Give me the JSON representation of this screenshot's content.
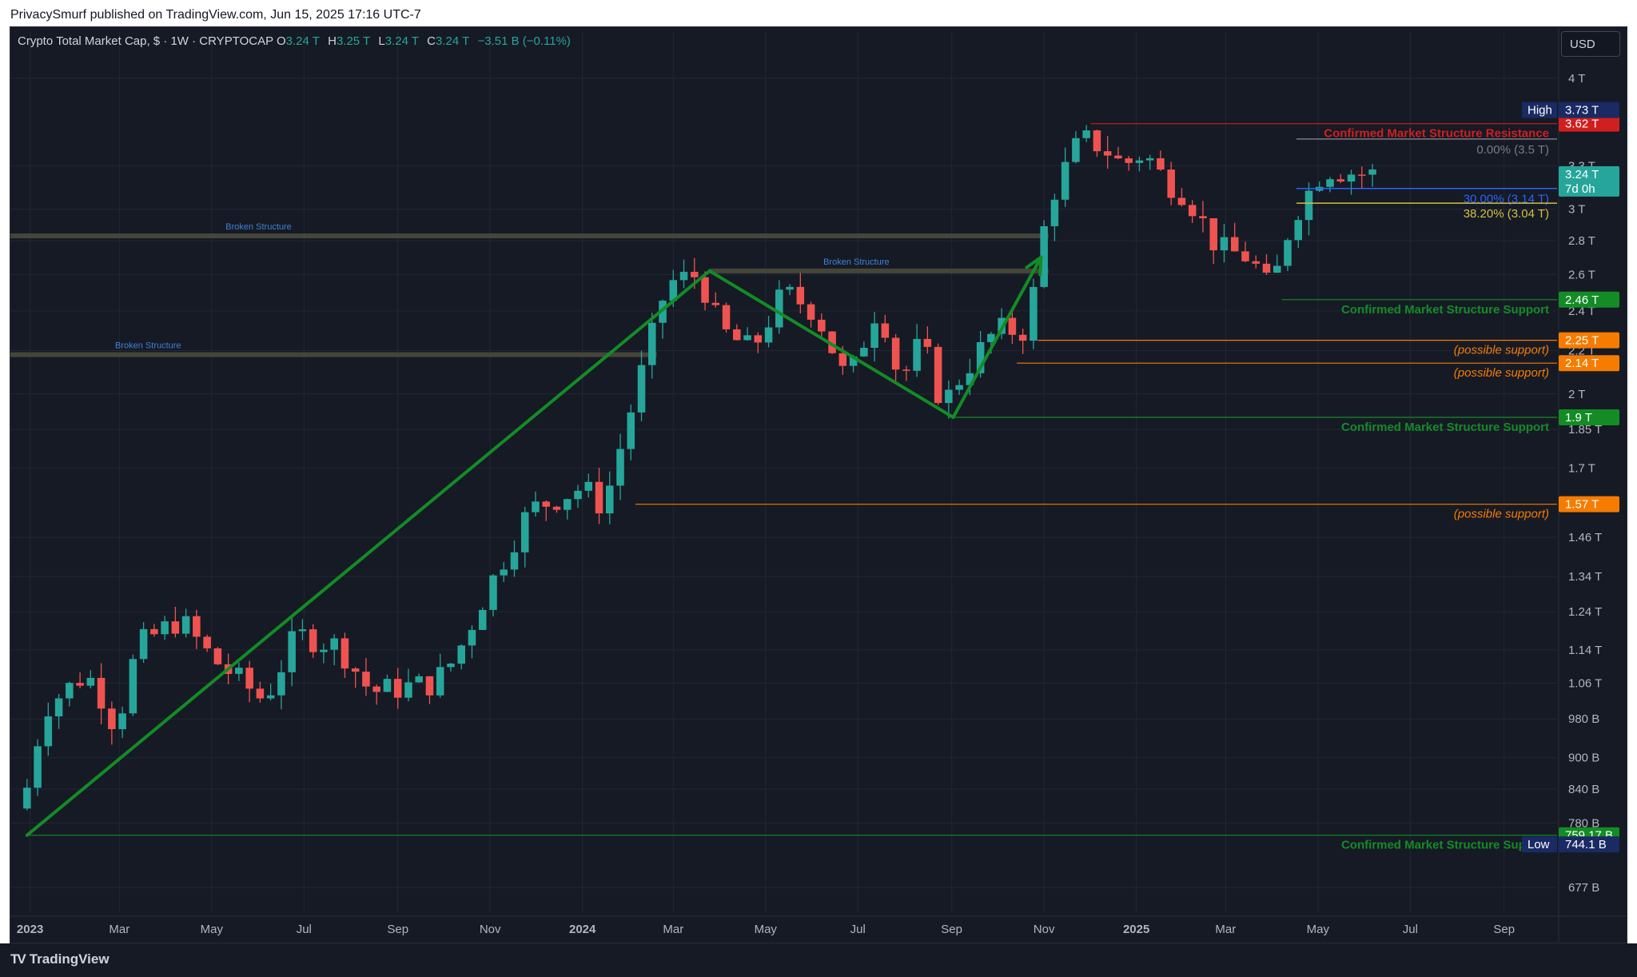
{
  "header": {
    "published": "PrivacySmurf published on TradingView.com, Jun 15, 2025 17:16 UTC-7",
    "symbol": "Crypto Total Market Cap, $ · 1W · CRYPTOCAP",
    "o_label": "O",
    "o_value": "3.24 T",
    "h_label": "H",
    "h_value": "3.25 T",
    "l_label": "L",
    "l_value": "3.24 T",
    "c_label": "C",
    "c_value": "3.24 T",
    "change": "−3.51 B (−0.11%)",
    "currency": "USD"
  },
  "footer": {
    "brand": "TradingView"
  },
  "colors": {
    "background": "#161a25",
    "up": "#26a69a",
    "down": "#ef5350",
    "structure": "#138c25",
    "resistance": "#d11f1f",
    "possible": "#f57c00",
    "grid": "#232736"
  },
  "chart_data": {
    "type": "candlestick",
    "title": "Crypto Total Market Cap, $ · 1W · CRYPTOCAP",
    "yscale": "log",
    "ylim": [
      640000000000,
      4200000000000
    ],
    "xlim": [
      "2022-12-19",
      "2025-10-06"
    ],
    "y_ticks": [
      {
        "v": 4000000000000.0,
        "label": "4 T"
      },
      {
        "v": 3300000000000.0,
        "label": "3.3 T"
      },
      {
        "v": 3000000000000.0,
        "label": "3 T"
      },
      {
        "v": 2800000000000.0,
        "label": "2.8 T"
      },
      {
        "v": 2600000000000.0,
        "label": "2.6 T"
      },
      {
        "v": 2400000000000.0,
        "label": "2.4 T"
      },
      {
        "v": 2200000000000.0,
        "label": "2.2 T"
      },
      {
        "v": 2000000000000.0,
        "label": "2 T"
      },
      {
        "v": 1850000000000.0,
        "label": "1.85 T"
      },
      {
        "v": 1700000000000.0,
        "label": "1.7 T"
      },
      {
        "v": 1460000000000.0,
        "label": "1.46 T"
      },
      {
        "v": 1340000000000.0,
        "label": "1.34 T"
      },
      {
        "v": 1240000000000.0,
        "label": "1.24 T"
      },
      {
        "v": 1140000000000.0,
        "label": "1.14 T"
      },
      {
        "v": 1060000000000.0,
        "label": "1.06 T"
      },
      {
        "v": 980000000000.0,
        "label": "980 B"
      },
      {
        "v": 900000000000.0,
        "label": "900 B"
      },
      {
        "v": 840000000000.0,
        "label": "840 B"
      },
      {
        "v": 780000000000.0,
        "label": "780 B"
      },
      {
        "v": 677000000000.0,
        "label": "677 B"
      }
    ],
    "x_ticks": [
      {
        "d": "2023-01-01",
        "label": "2023",
        "bold": true
      },
      {
        "d": "2023-03-01",
        "label": "Mar"
      },
      {
        "d": "2023-05-01",
        "label": "May"
      },
      {
        "d": "2023-07-01",
        "label": "Jul"
      },
      {
        "d": "2023-09-01",
        "label": "Sep"
      },
      {
        "d": "2023-11-01",
        "label": "Nov"
      },
      {
        "d": "2024-01-01",
        "label": "2024",
        "bold": true
      },
      {
        "d": "2024-03-01",
        "label": "Mar"
      },
      {
        "d": "2024-05-01",
        "label": "May"
      },
      {
        "d": "2024-07-01",
        "label": "Jul"
      },
      {
        "d": "2024-09-01",
        "label": "Sep"
      },
      {
        "d": "2024-11-01",
        "label": "Nov"
      },
      {
        "d": "2025-01-01",
        "label": "2025",
        "bold": true
      },
      {
        "d": "2025-03-01",
        "label": "Mar"
      },
      {
        "d": "2025-05-01",
        "label": "May"
      },
      {
        "d": "2025-07-01",
        "label": "Jul"
      },
      {
        "d": "2025-09-01",
        "label": "Sep"
      }
    ],
    "pivots": [
      {
        "d": "2022-12-30",
        "v": 0.805
      },
      {
        "d": "2023-01-09",
        "v": 0.86
      },
      {
        "d": "2023-01-16",
        "v": 1.0
      },
      {
        "d": "2023-02-13",
        "v": 1.08
      },
      {
        "d": "2023-02-20",
        "v": 1.06
      },
      {
        "d": "2023-03-06",
        "v": 0.96
      },
      {
        "d": "2023-03-20",
        "v": 1.15
      },
      {
        "d": "2023-04-17",
        "v": 1.22
      },
      {
        "d": "2023-05-08",
        "v": 1.12
      },
      {
        "d": "2023-06-12",
        "v": 1.02
      },
      {
        "d": "2023-07-03",
        "v": 1.18
      },
      {
        "d": "2023-07-31",
        "v": 1.15
      },
      {
        "d": "2023-08-21",
        "v": 1.04
      },
      {
        "d": "2023-10-02",
        "v": 1.06
      },
      {
        "d": "2023-10-16",
        "v": 1.12
      },
      {
        "d": "2023-11-06",
        "v": 1.3
      },
      {
        "d": "2023-12-04",
        "v": 1.55
      },
      {
        "d": "2024-01-08",
        "v": 1.63
      },
      {
        "d": "2024-01-22",
        "v": 1.56
      },
      {
        "d": "2024-02-12",
        "v": 2.0
      },
      {
        "d": "2024-03-04",
        "v": 2.55
      },
      {
        "d": "2024-03-25",
        "v": 2.6
      },
      {
        "d": "2024-04-08",
        "v": 2.3
      },
      {
        "d": "2024-04-29",
        "v": 2.2
      },
      {
        "d": "2024-05-20",
        "v": 2.5
      },
      {
        "d": "2024-06-10",
        "v": 2.4
      },
      {
        "d": "2024-07-01",
        "v": 2.05
      },
      {
        "d": "2024-07-22",
        "v": 2.45
      },
      {
        "d": "2024-08-05",
        "v": 2.05
      },
      {
        "d": "2024-08-19",
        "v": 2.25
      },
      {
        "d": "2024-09-02",
        "v": 1.95
      },
      {
        "d": "2024-09-16",
        "v": 2.1
      },
      {
        "d": "2024-10-07",
        "v": 2.3
      },
      {
        "d": "2024-10-28",
        "v": 2.3
      },
      {
        "d": "2024-11-11",
        "v": 3.05
      },
      {
        "d": "2024-12-02",
        "v": 3.5
      },
      {
        "d": "2024-12-16",
        "v": 3.45
      },
      {
        "d": "2024-12-30",
        "v": 3.3
      },
      {
        "d": "2025-01-13",
        "v": 3.4
      },
      {
        "d": "2025-01-27",
        "v": 3.2
      },
      {
        "d": "2025-02-10",
        "v": 3.1
      },
      {
        "d": "2025-03-03",
        "v": 2.75
      },
      {
        "d": "2025-03-24",
        "v": 2.7
      },
      {
        "d": "2025-04-07",
        "v": 2.5
      },
      {
        "d": "2025-04-21",
        "v": 2.95
      },
      {
        "d": "2025-05-12",
        "v": 3.28
      },
      {
        "d": "2025-06-09",
        "v": 3.24
      }
    ],
    "levels": [
      {
        "value": 3620000000000,
        "tag": "3.62 T",
        "color": "#d11f1f",
        "label": "Confirmed Market Structure Resistance",
        "from": "2024-12-02"
      },
      {
        "value": 2460000000000,
        "tag": "2.46 T",
        "color": "#138c25",
        "label": "Confirmed Market Structure Support",
        "from": "2025-04-07"
      },
      {
        "value": 2250000000000,
        "tag": "2.25 T",
        "color": "#f57c00",
        "label": "(possible support)",
        "from": "2024-10-28"
      },
      {
        "value": 2140000000000,
        "tag": "2.14 T",
        "color": "#f57c00",
        "label": "(possible support)",
        "from": "2024-10-14"
      },
      {
        "value": 1900000000000,
        "tag": "1.9 T",
        "color": "#138c25",
        "label": "Confirmed Market Structure Support",
        "from": "2024-09-02"
      },
      {
        "value": 1570000000000,
        "tag": "1.57 T",
        "color": "#f57c00",
        "label": "(possible support)",
        "from": "2024-02-05"
      },
      {
        "value": 759170000000,
        "tag": "759.17 B",
        "color": "#138c25",
        "label": "Confirmed Market Structure Support",
        "from": "2022-12-30"
      }
    ],
    "price_tags": [
      {
        "value": 3730000000000,
        "text": "3.73 T",
        "prefix": "High",
        "color": "#1a2a63",
        "prefix_color": "#1a2a63"
      },
      {
        "value": 3240000000000,
        "text": "3.24 T",
        "sub": "7d 0h",
        "color": "#26a69a"
      },
      {
        "value": 744100000000,
        "text": "744.1 B",
        "prefix": "Low",
        "color": "#1a2a63",
        "prefix_color": "#1a2a63"
      }
    ],
    "broken_structures": [
      {
        "value": 2830000000000,
        "from": "2022-12-19",
        "to": "2024-11-04",
        "label": "Broken Structure",
        "label_d": "2023-06-01"
      },
      {
        "value": 2180000000000,
        "from": "2022-12-19",
        "to": "2024-02-19",
        "label": "Broken Structure",
        "label_d": "2023-03-20"
      },
      {
        "value": 2620000000000,
        "from": "2024-03-25",
        "to": "2024-11-04",
        "label": "Broken Structure",
        "label_d": "2024-06-30"
      }
    ],
    "fibonacci": [
      {
        "label": "0.00% (3.5 T)",
        "value": 3500000000000,
        "color": "#787b86"
      },
      {
        "label": "30.00% (3.14 T)",
        "value": 3140000000000,
        "color": "#2962ff"
      },
      {
        "label": "38.20% (3.04 T)",
        "value": 3040000000000,
        "color": "#d4c13a"
      }
    ],
    "trend_lines": [
      {
        "points": [
          [
            "2022-12-30",
            759170000000
          ],
          [
            "2024-03-25",
            2620000000000
          ]
        ],
        "color": "#138c25"
      },
      {
        "points": [
          [
            "2024-03-25",
            2620000000000
          ],
          [
            "2024-09-02",
            1900000000000
          ]
        ],
        "color": "#138c25"
      },
      {
        "points": [
          [
            "2024-09-02",
            1900000000000
          ],
          [
            "2024-10-30",
            2700000000000
          ]
        ],
        "color": "#138c25",
        "arrow": true
      }
    ]
  }
}
